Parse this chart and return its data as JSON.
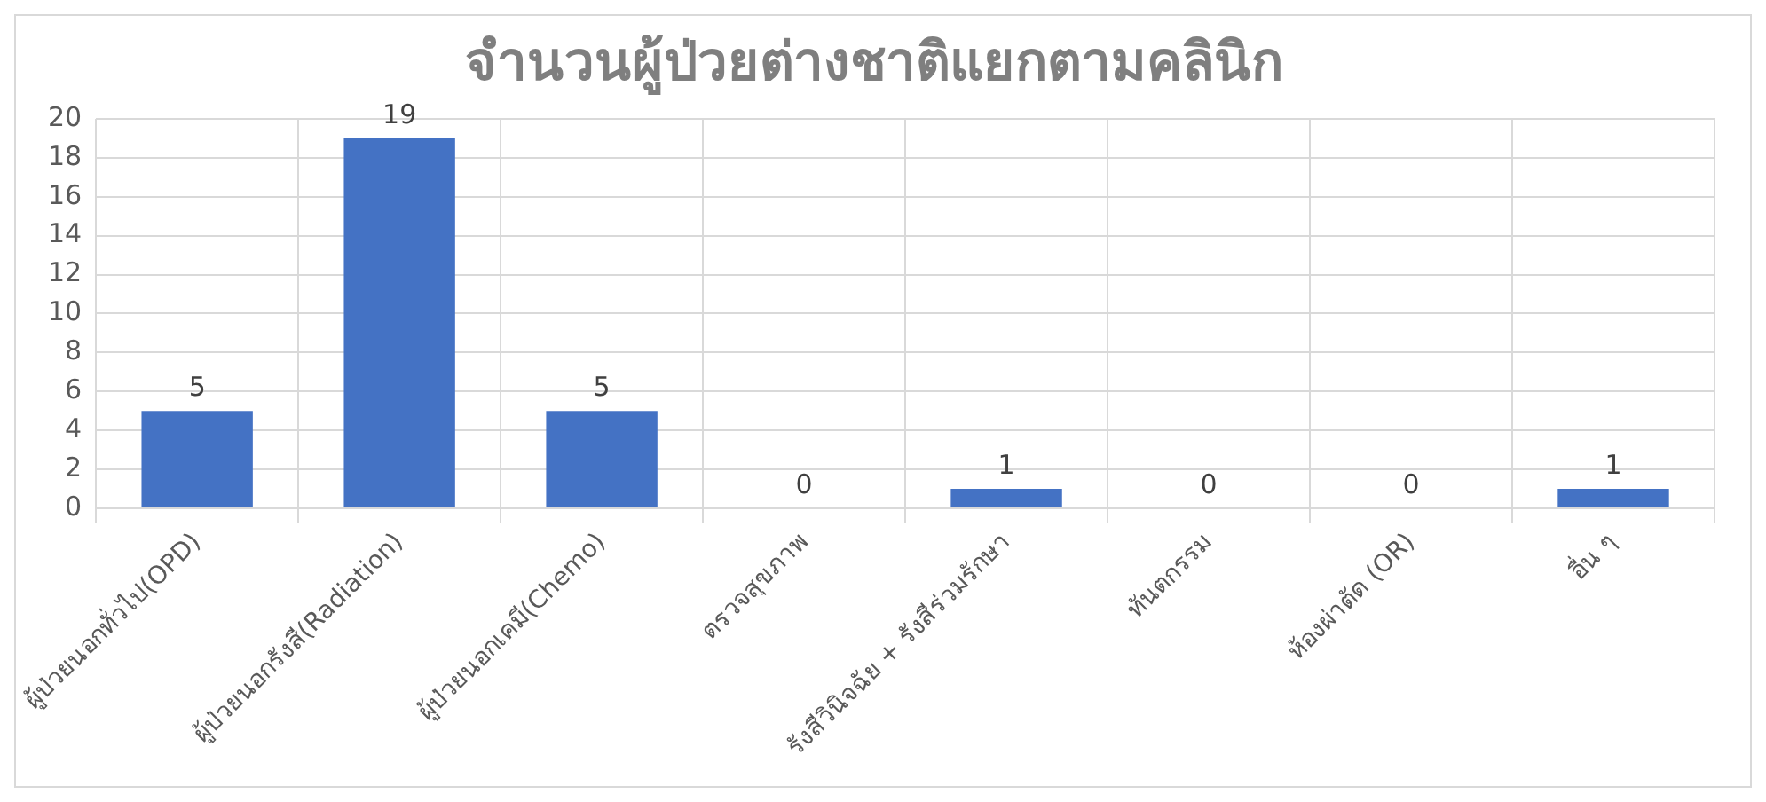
{
  "chart_data": {
    "type": "bar",
    "title": "จำนวนผู้ป่วยต่างชาติแยกตามคลินิก",
    "categories": [
      "ผู้ป่วยนอกทั่วไป(OPD)",
      "ผู้ป่วยนอกรังสี(Radiation)",
      "ผู้ป่วยนอกเคมี(Chemo)",
      "ตรวจสุขภาพ",
      "รังสีวินิจฉัย + รังสีร่วมรักษา",
      "ทันตกรรม",
      "ห้องผ่าตัด (OR)",
      "อื่น ๆ"
    ],
    "values": [
      5,
      19,
      5,
      0,
      1,
      0,
      0,
      1
    ],
    "color": "#4472c4",
    "ylim": [
      0,
      20
    ],
    "yticks": [
      0,
      2,
      4,
      6,
      8,
      10,
      12,
      14,
      16,
      18,
      20
    ],
    "grid": true,
    "data_labels": true
  }
}
